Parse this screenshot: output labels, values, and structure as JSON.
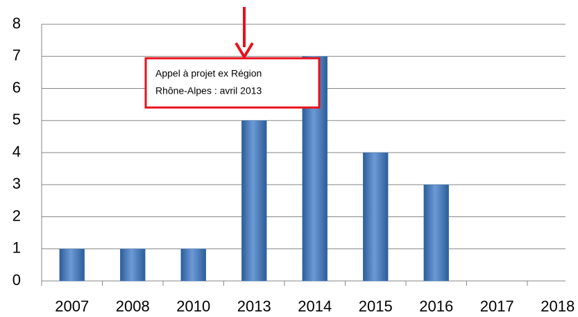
{
  "chart_data": {
    "type": "bar",
    "categories": [
      "2007",
      "2008",
      "2010",
      "2013",
      "2014",
      "2015",
      "2016",
      "2017",
      "2018"
    ],
    "values": [
      1,
      1,
      1,
      5,
      7,
      4,
      3,
      0,
      0
    ],
    "color": "#4a7ebb",
    "ylim": [
      0,
      8
    ],
    "yticks": [
      0,
      1,
      2,
      3,
      4,
      5,
      6,
      7,
      8
    ],
    "grid": true,
    "annotations": [
      "Appel à projet ex Région",
      "Rhône-Alpes : avril 2013"
    ],
    "annotation_color": "#e8111b"
  }
}
